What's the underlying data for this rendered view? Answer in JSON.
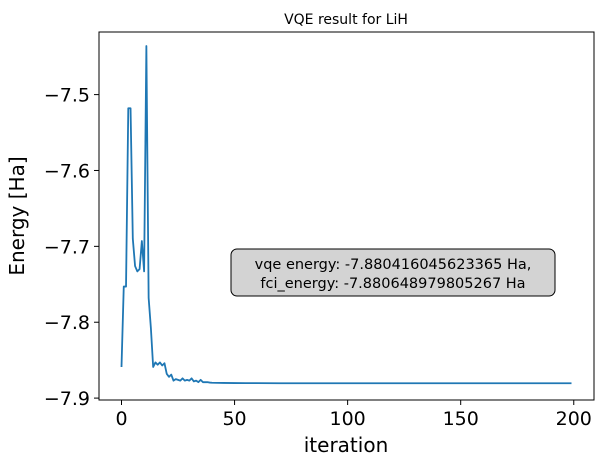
{
  "chart_data": {
    "type": "line",
    "title": "VQE result for LiH",
    "xlabel": "iteration",
    "ylabel": "Energy [Ha]",
    "xlim": [
      -9.95,
      208.95
    ],
    "ylim": [
      -7.9025,
      -7.4175
    ],
    "x_ticks": [
      0,
      50,
      100,
      150,
      200
    ],
    "y_ticks": [
      -7.5,
      -7.6,
      -7.7,
      -7.8,
      -7.9
    ],
    "x_tick_labels": [
      "0",
      "50",
      "100",
      "150",
      "200"
    ],
    "y_tick_labels": [
      "−7.5",
      "−7.6",
      "−7.7",
      "−7.8",
      "−7.9"
    ],
    "grid": false,
    "annotation": {
      "lines": [
        "vqe energy: -7.880416045623365 Ha,",
        "fci_energy: -7.880648979805267 Ha"
      ],
      "fill": "#d3d3d3"
    },
    "series": [
      {
        "color": "#1f77b4",
        "x": [
          0,
          1,
          2,
          3,
          4,
          5,
          6,
          7,
          8,
          9,
          10,
          11,
          12,
          13,
          14,
          15,
          16,
          17,
          18,
          19,
          20,
          21,
          22,
          23,
          24,
          25,
          26,
          27,
          28,
          29,
          30,
          31,
          32,
          33,
          34,
          35,
          36,
          37,
          38,
          39,
          40,
          45,
          50,
          55,
          60,
          70,
          80,
          100,
          120,
          150,
          180,
          199
        ],
        "y": [
          -7.859,
          -7.753,
          -7.753,
          -7.518,
          -7.518,
          -7.69,
          -7.726,
          -7.733,
          -7.73,
          -7.693,
          -7.733,
          -7.436,
          -7.768,
          -7.808,
          -7.859,
          -7.853,
          -7.856,
          -7.853,
          -7.857,
          -7.854,
          -7.868,
          -7.872,
          -7.869,
          -7.877,
          -7.875,
          -7.876,
          -7.877,
          -7.874,
          -7.877,
          -7.876,
          -7.877,
          -7.874,
          -7.878,
          -7.877,
          -7.879,
          -7.876,
          -7.879,
          -7.879,
          -7.879,
          -7.8795,
          -7.8798,
          -7.88,
          -7.8802,
          -7.8803,
          -7.8803,
          -7.8804,
          -7.8804,
          -7.8804,
          -7.8804,
          -7.8804,
          -7.8804,
          -7.8804
        ]
      }
    ]
  }
}
